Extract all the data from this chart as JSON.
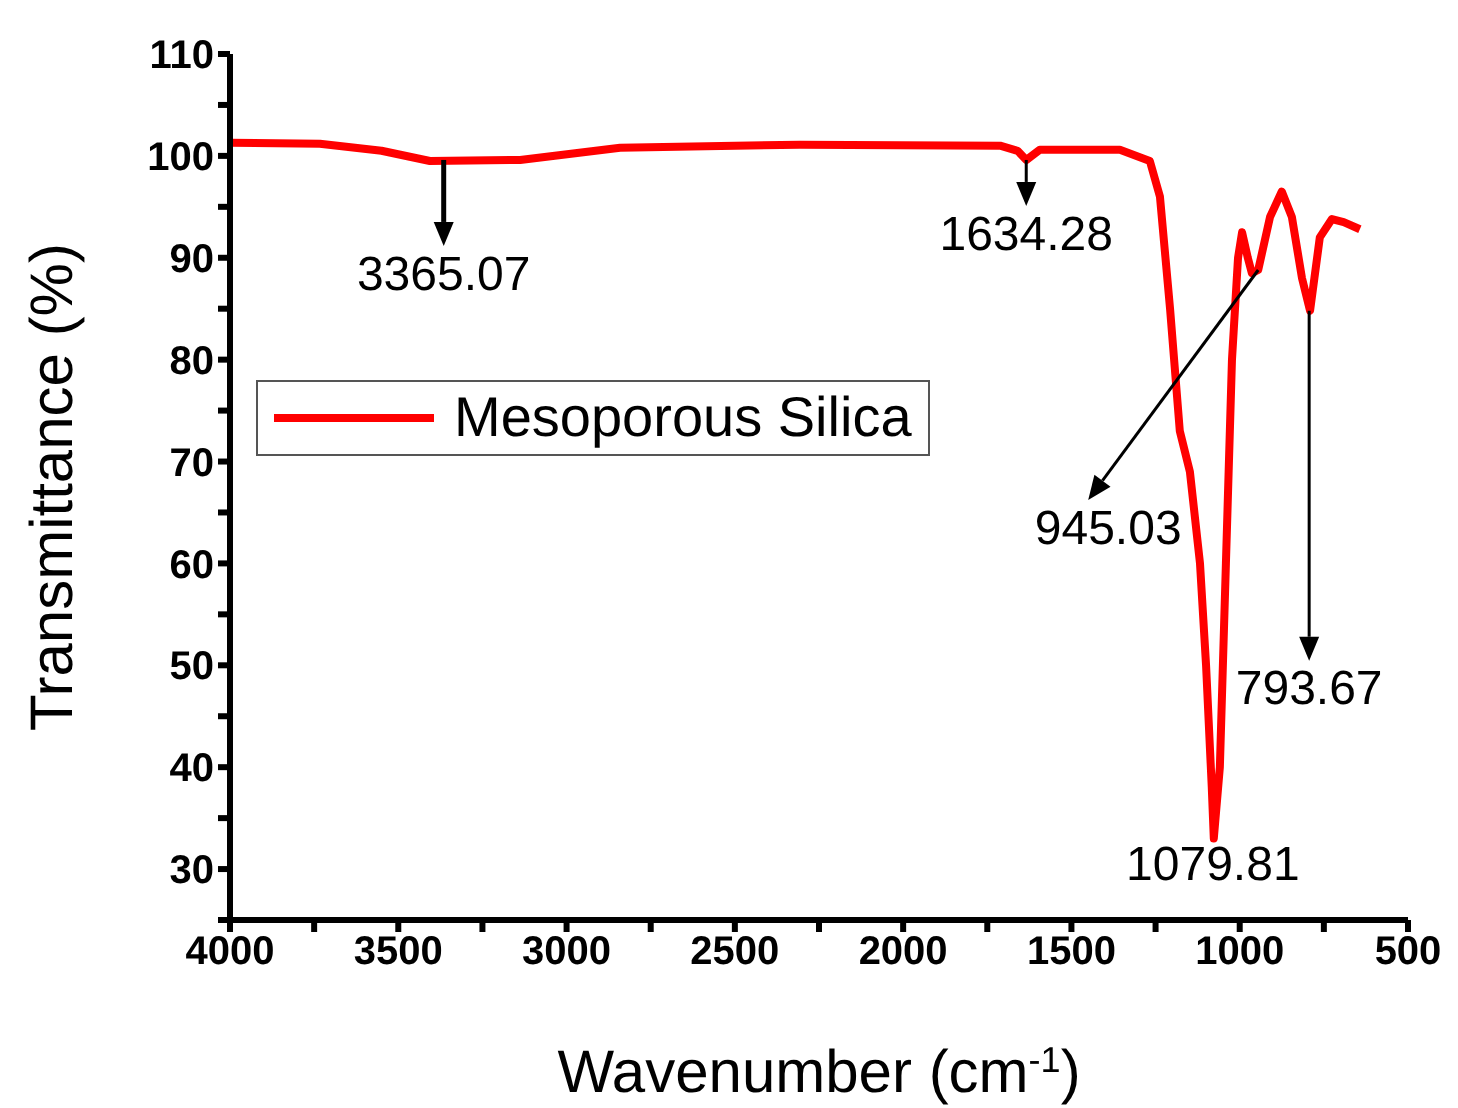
{
  "chart_data": {
    "type": "line",
    "xlabel": "Wavenumber (cm$^{-1}$)",
    "ylabel": "Transmittance (%)",
    "xlim": [
      4000,
      500
    ],
    "xticks": [
      4000,
      {
        "value": 3750,
        "label": null
      },
      3500,
      {
        "value": 3250,
        "label": null
      },
      3000,
      {
        "value": 2750,
        "label": null
      },
      2500,
      {
        "value": 2250,
        "label": null
      },
      2000,
      {
        "value": 1750,
        "label": null
      },
      1500,
      {
        "value": 1250,
        "label": null
      },
      1000,
      {
        "value": 750,
        "label": null
      },
      500
    ],
    "ylim": [
      25,
      110
    ],
    "yticks": [
      {
        "value": 25,
        "label": null
      },
      30,
      {
        "value": 35,
        "label": null
      },
      40,
      {
        "value": 45,
        "label": null
      },
      50,
      {
        "value": 55,
        "label": null
      },
      60,
      {
        "value": 65,
        "label": null
      },
      70,
      {
        "value": 75,
        "label": null
      },
      80,
      {
        "value": 85,
        "label": null
      },
      90,
      {
        "value": 95,
        "label": null
      },
      100,
      {
        "value": 105,
        "label": null
      },
      110
    ],
    "legend": "left",
    "grid": false,
    "marker": "none",
    "line_style": "solid",
    "series": [
      {
        "name": "Mesoporous Silica",
        "color": "#ff0000",
        "x": [
          4000,
          3733,
          3550,
          3406,
          3138,
          2841,
          2307,
          1712,
          1660,
          1634,
          1594,
          1356,
          1267,
          1237,
          1207,
          1178,
          1148,
          1118,
          1100,
          1083,
          1077,
          1059,
          1041,
          1023,
          1005,
          993,
          976,
          964,
          945,
          910,
          875,
          845,
          815,
          791,
          762,
          726,
          691,
          643
        ],
        "values": [
          101.3,
          101.2,
          100.5,
          99.5,
          99.6,
          100.8,
          101.1,
          101,
          100.5,
          99.6,
          100.6,
          100.6,
          99.5,
          96,
          85,
          73,
          69,
          60,
          50,
          38,
          33,
          40,
          60,
          80,
          90,
          92.5,
          90,
          88.5,
          88.8,
          94,
          96.5,
          94,
          88,
          84.8,
          92,
          93.8,
          93.5,
          92.8
        ]
      }
    ],
    "annotations": [
      {
        "text": "3365.07",
        "x": 3365.07,
        "y": 99.6
      },
      {
        "text": "1634.28",
        "x": 1634.28,
        "y": 99.6
      },
      {
        "text": "945.03",
        "x": 945.03,
        "y": 88.8
      },
      {
        "text": "1079.81",
        "x": 1079.81,
        "y": 33
      },
      {
        "text": "793.67",
        "x": 793.67,
        "y": 84.8
      }
    ]
  }
}
